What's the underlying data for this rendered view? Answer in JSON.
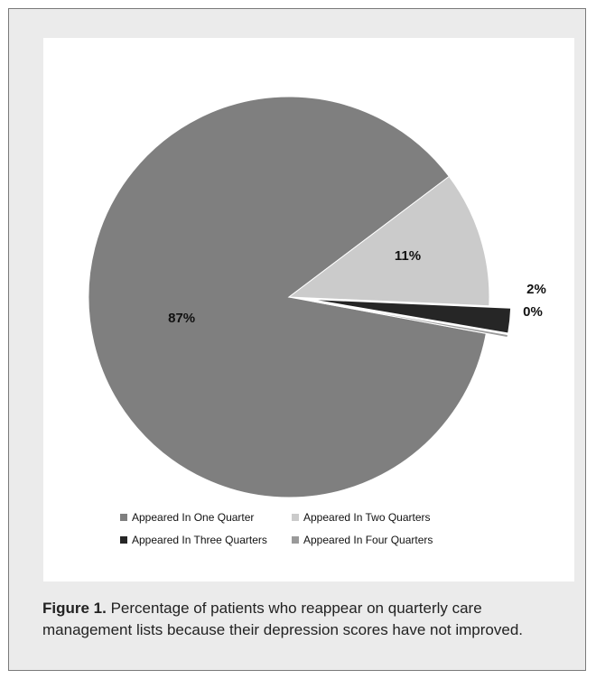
{
  "chart_data": {
    "type": "pie",
    "categories": [
      "Appeared In One Quarter",
      "Appeared In Two Quarters",
      "Appeared In Three Quarters",
      "Appeared In Four Quarters"
    ],
    "values": [
      87,
      11,
      2,
      0
    ],
    "labels": [
      "87%",
      "11%",
      "2%",
      "0%"
    ],
    "colors": [
      "#7f7f7f",
      "#cbcbcb",
      "#262626",
      "#9a9a9a"
    ],
    "exploded": [
      false,
      false,
      true,
      true
    ],
    "legend_position": "bottom"
  },
  "caption": {
    "label": "Figure 1.",
    "text": " Percentage of patients who reappear on quarterly care management lists because their depression scores have not improved."
  }
}
